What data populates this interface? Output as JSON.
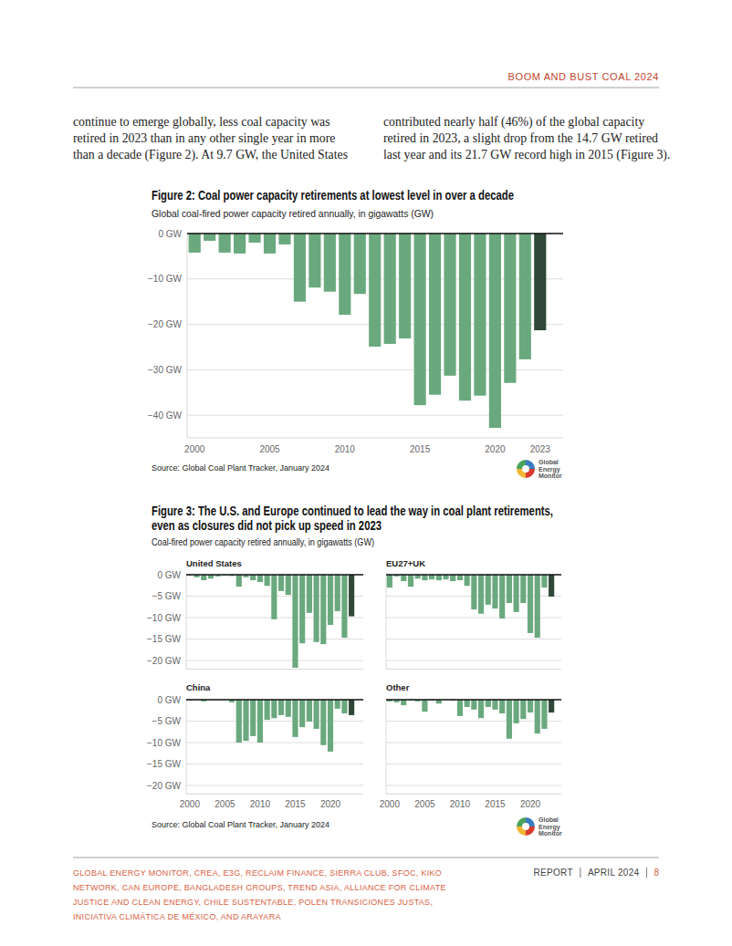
{
  "header": {
    "running_title": "BOOM AND BUST COAL 2024"
  },
  "body": {
    "columns": [
      [
        "continue to emerge globally, less coal capacity was",
        "retired in 2023 than in any other single year in more",
        "than a decade (Figure 2). At 9.7 GW, the United States"
      ],
      [
        "contributed nearly half (46%) of the global capacity",
        "retired in 2023, a slight drop from the 14.7 GW retired",
        "last year and its 21.7 GW record high in 2015 (Figure 3)."
      ]
    ]
  },
  "logo": {
    "lines": [
      "Global",
      "Energy",
      "Monitor"
    ]
  },
  "figure3": {
    "title": [
      "Figure 3: The U.S. and Europe continued to lead the way in coal plant retirements,",
      "even as closures did not pick up speed in 2023"
    ],
    "subtitle": "Coal-fired power capacity retired annually, in gigawatts (GW)",
    "source": "Source: Global Coal Plant Tracker, January 2024"
  },
  "chart_data": [
    {
      "type": "bar",
      "title": "Figure 2: Coal power capacity retirements at lowest level in over a decade",
      "subtitle": "Global coal-fired power capacity retired annually, in gigawatts (GW)",
      "source": "Source: Global Coal Plant Tracker, January 2024",
      "categories": [
        "2000",
        null,
        null,
        null,
        null,
        "2005",
        null,
        null,
        null,
        null,
        "2010",
        null,
        null,
        null,
        null,
        "2015",
        null,
        null,
        null,
        null,
        "2020",
        null,
        null,
        "2023"
      ],
      "values": [
        -4.2,
        -1.6,
        -4.2,
        -4.4,
        -2.0,
        -4.4,
        -2.4,
        -15.0,
        -11.9,
        -12.8,
        -17.9,
        -13.3,
        -24.9,
        -24.3,
        -23.1,
        -37.8,
        -35.5,
        -31.3,
        -36.8,
        -35.7,
        -42.8,
        -32.9,
        -27.7,
        -21.3
      ],
      "colors": [
        "#6aa97e",
        "#6aa97e",
        "#6aa97e",
        "#6aa97e",
        "#6aa97e",
        "#6aa97e",
        "#6aa97e",
        "#6aa97e",
        "#6aa97e",
        "#6aa97e",
        "#6aa97e",
        "#6aa97e",
        "#6aa97e",
        "#6aa97e",
        "#6aa97e",
        "#6aa97e",
        "#6aa97e",
        "#6aa97e",
        "#6aa97e",
        "#6aa97e",
        "#6aa97e",
        "#6aa97e",
        "#6aa97e",
        "#2f4837"
      ],
      "ylim": [
        -45,
        0
      ],
      "yticks": [
        {
          "value": 0,
          "label": "0 GW"
        },
        {
          "value": -10,
          "label": "−10 GW"
        },
        {
          "value": -20,
          "label": "−20 GW"
        },
        {
          "value": -30,
          "label": "−30 GW"
        },
        {
          "value": -40,
          "label": "−40 GW"
        }
      ],
      "grid": true
    },
    {
      "type": "bar",
      "title": "United States",
      "categories": [
        "2000",
        null,
        null,
        null,
        null,
        "2005",
        null,
        null,
        null,
        null,
        "2010",
        null,
        null,
        null,
        null,
        "2015",
        null,
        null,
        null,
        null,
        "2020",
        null,
        null,
        null
      ],
      "values": [
        -0.2,
        -0.6,
        -1.3,
        -0.9,
        -0.4,
        -0.2,
        -0.3,
        -2.8,
        -0.6,
        -1.3,
        -1.7,
        -2.6,
        -10.4,
        -3.8,
        -4.7,
        -21.7,
        -16.0,
        -8.9,
        -15.7,
        -16.2,
        -11.7,
        -8.5,
        -14.7,
        -9.7
      ],
      "colors": [
        "#6aa97e",
        "#6aa97e",
        "#6aa97e",
        "#6aa97e",
        "#6aa97e",
        "#6aa97e",
        "#6aa97e",
        "#6aa97e",
        "#6aa97e",
        "#6aa97e",
        "#6aa97e",
        "#6aa97e",
        "#6aa97e",
        "#6aa97e",
        "#6aa97e",
        "#6aa97e",
        "#6aa97e",
        "#6aa97e",
        "#6aa97e",
        "#6aa97e",
        "#6aa97e",
        "#6aa97e",
        "#6aa97e",
        "#2f4837"
      ],
      "ylim": [
        -22,
        0
      ],
      "yticks": [
        {
          "value": 0,
          "label": "0 GW"
        },
        {
          "value": -5,
          "label": "−5 GW"
        },
        {
          "value": -10,
          "label": "−10 GW"
        },
        {
          "value": -15,
          "label": "−15 GW"
        },
        {
          "value": -20,
          "label": "−20 GW"
        }
      ],
      "grid": true,
      "tick_labels": "y"
    },
    {
      "type": "bar",
      "title": "EU27+UK",
      "categories": [
        "2000",
        null,
        null,
        null,
        null,
        "2005",
        null,
        null,
        null,
        null,
        "2010",
        null,
        null,
        null,
        null,
        "2015",
        null,
        null,
        null,
        null,
        "2020",
        null,
        null,
        null
      ],
      "values": [
        -3.0,
        -0.4,
        -1.5,
        -2.8,
        -0.9,
        -1.3,
        -1.1,
        -1.3,
        -1.1,
        -1.5,
        -1.3,
        -2.6,
        -8.1,
        -9.1,
        -7.0,
        -7.9,
        -10.2,
        -6.6,
        -8.7,
        -6.6,
        -13.6,
        -14.7,
        -3.0,
        -5.1
      ],
      "colors": [
        "#6aa97e",
        "#6aa97e",
        "#6aa97e",
        "#6aa97e",
        "#6aa97e",
        "#6aa97e",
        "#6aa97e",
        "#6aa97e",
        "#6aa97e",
        "#6aa97e",
        "#6aa97e",
        "#6aa97e",
        "#6aa97e",
        "#6aa97e",
        "#6aa97e",
        "#6aa97e",
        "#6aa97e",
        "#6aa97e",
        "#6aa97e",
        "#6aa97e",
        "#6aa97e",
        "#6aa97e",
        "#6aa97e",
        "#2f4837"
      ],
      "ylim": [
        -22,
        0
      ],
      "yticks": [
        {
          "value": 0,
          "label": "0 GW"
        },
        {
          "value": -5,
          "label": "−5 GW"
        },
        {
          "value": -10,
          "label": "−10 GW"
        },
        {
          "value": -15,
          "label": "−15 GW"
        },
        {
          "value": -20,
          "label": "−20 GW"
        }
      ],
      "grid": true,
      "tick_labels": false
    },
    {
      "type": "bar",
      "title": "China",
      "categories": [
        "2000",
        null,
        null,
        null,
        null,
        "2005",
        null,
        null,
        null,
        null,
        "2010",
        null,
        null,
        null,
        null,
        "2015",
        null,
        null,
        null,
        null,
        "2020",
        null,
        null,
        null
      ],
      "values": [
        -0.2,
        -0.1,
        -0.4,
        -0.1,
        -0.1,
        -0.1,
        -0.6,
        -10.0,
        -9.6,
        -8.5,
        -10.0,
        -4.7,
        -4.3,
        -3.6,
        -4.0,
        -8.7,
        -6.4,
        -5.1,
        -6.8,
        -10.6,
        -12.1,
        -2.1,
        -3.2,
        -3.6
      ],
      "colors": [
        "#6aa97e",
        "#6aa97e",
        "#6aa97e",
        "#6aa97e",
        "#6aa97e",
        "#6aa97e",
        "#6aa97e",
        "#6aa97e",
        "#6aa97e",
        "#6aa97e",
        "#6aa97e",
        "#6aa97e",
        "#6aa97e",
        "#6aa97e",
        "#6aa97e",
        "#6aa97e",
        "#6aa97e",
        "#6aa97e",
        "#6aa97e",
        "#6aa97e",
        "#6aa97e",
        "#6aa97e",
        "#6aa97e",
        "#2f4837"
      ],
      "ylim": [
        -22,
        0
      ],
      "yticks": [
        {
          "value": 0,
          "label": "0 GW"
        },
        {
          "value": -5,
          "label": "−5 GW"
        },
        {
          "value": -10,
          "label": "−10 GW"
        },
        {
          "value": -15,
          "label": "−15 GW"
        },
        {
          "value": -20,
          "label": "−20 GW"
        }
      ],
      "grid": true,
      "tick_labels": true
    },
    {
      "type": "bar",
      "title": "Other",
      "categories": [
        "2000",
        null,
        null,
        null,
        null,
        "2005",
        null,
        null,
        null,
        null,
        "2010",
        null,
        null,
        null,
        null,
        "2015",
        null,
        null,
        null,
        null,
        "2020",
        null,
        null,
        null
      ],
      "values": [
        -0.4,
        -0.6,
        -1.3,
        -0.2,
        -0.4,
        -2.8,
        -0.2,
        -0.9,
        -0.1,
        -0.2,
        -3.8,
        -1.7,
        -2.3,
        -4.3,
        -1.7,
        -2.3,
        -3.2,
        -9.1,
        -5.5,
        -4.5,
        -3.0,
        -7.9,
        -6.8,
        -3.0
      ],
      "colors": [
        "#6aa97e",
        "#6aa97e",
        "#6aa97e",
        "#6aa97e",
        "#6aa97e",
        "#6aa97e",
        "#6aa97e",
        "#6aa97e",
        "#6aa97e",
        "#6aa97e",
        "#6aa97e",
        "#6aa97e",
        "#6aa97e",
        "#6aa97e",
        "#6aa97e",
        "#6aa97e",
        "#6aa97e",
        "#6aa97e",
        "#6aa97e",
        "#6aa97e",
        "#6aa97e",
        "#6aa97e",
        "#6aa97e",
        "#2f4837"
      ],
      "ylim": [
        -22,
        0
      ],
      "yticks": [
        {
          "value": 0,
          "label": "0 GW"
        },
        {
          "value": -5,
          "label": "−5 GW"
        },
        {
          "value": -10,
          "label": "−10 GW"
        },
        {
          "value": -15,
          "label": "−15 GW"
        },
        {
          "value": -20,
          "label": "−20 GW"
        }
      ],
      "grid": true,
      "tick_labels": "x"
    }
  ],
  "footer": {
    "organizations": [
      "GLOBAL ENERGY MONITOR, CREA, E3G, RECLAIM FINANCE, SIERRA CLUB, SFOC, KIKO",
      "NETWORK, CAN EUROPE, BANGLADESH GROUPS, TREND ASIA, ALLIANCE FOR CLIMATE",
      "JUSTICE AND CLEAN ENERGY, CHILE SUSTENTABLE, POLEN TRANSICIONES JUSTAS,",
      "INICIATIVA CLIMÁTICA DE MÉXICO, AND ARAYARA"
    ],
    "report": "REPORT",
    "date": "APRIL 2024",
    "page": "8"
  }
}
